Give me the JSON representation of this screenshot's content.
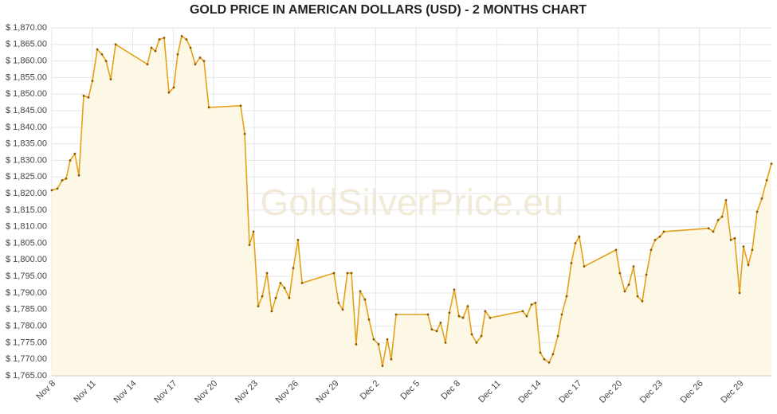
{
  "chart_data": {
    "type": "line",
    "title": "GOLD PRICE IN AMERICAN DOLLARS (USD) - 2 MONTHS CHART",
    "watermark": "GoldSilverPrice.eu",
    "color": "#e3a21a",
    "fill": "#fdf7e6",
    "grid": true,
    "xlim": [
      0,
      53.34
    ],
    "ylim": [
      1765,
      1870
    ],
    "xticks": [
      {
        "value": 0,
        "label": "Nov 8"
      },
      {
        "value": 3,
        "label": "Nov 11"
      },
      {
        "value": 6,
        "label": "Nov 14"
      },
      {
        "value": 9,
        "label": "Nov 17"
      },
      {
        "value": 12,
        "label": "Nov 20"
      },
      {
        "value": 15,
        "label": "Nov 23"
      },
      {
        "value": 18,
        "label": "Nov 26"
      },
      {
        "value": 21,
        "label": "Nov 29"
      },
      {
        "value": 24,
        "label": "Dec 2"
      },
      {
        "value": 27,
        "label": "Dec 5"
      },
      {
        "value": 30,
        "label": "Dec 8"
      },
      {
        "value": 33,
        "label": "Dec 11"
      },
      {
        "value": 36,
        "label": "Dec 14"
      },
      {
        "value": 39,
        "label": "Dec 17"
      },
      {
        "value": 42,
        "label": "Dec 20"
      },
      {
        "value": 45,
        "label": "Dec 23"
      },
      {
        "value": 48,
        "label": "Dec 26"
      },
      {
        "value": 51,
        "label": "Dec 29"
      }
    ],
    "yticks": [
      {
        "value": 1765,
        "label": "$ 1,765.00"
      },
      {
        "value": 1770,
        "label": "$ 1,770.00"
      },
      {
        "value": 1775,
        "label": "$ 1,775.00"
      },
      {
        "value": 1780,
        "label": "$ 1,780.00"
      },
      {
        "value": 1785,
        "label": "$ 1,785.00"
      },
      {
        "value": 1790,
        "label": "$ 1,790.00"
      },
      {
        "value": 1795,
        "label": "$ 1,795.00"
      },
      {
        "value": 1800,
        "label": "$ 1,800.00"
      },
      {
        "value": 1805,
        "label": "$ 1,805.00"
      },
      {
        "value": 1810,
        "label": "$ 1,810.00"
      },
      {
        "value": 1815,
        "label": "$ 1,815.00"
      },
      {
        "value": 1820,
        "label": "$ 1,820.00"
      },
      {
        "value": 1825,
        "label": "$ 1,825.00"
      },
      {
        "value": 1830,
        "label": "$ 1,830.00"
      },
      {
        "value": 1835,
        "label": "$ 1,835.00"
      },
      {
        "value": 1840,
        "label": "$ 1,840.00"
      },
      {
        "value": 1845,
        "label": "$ 1,845.00"
      },
      {
        "value": 1850,
        "label": "$ 1,850.00"
      },
      {
        "value": 1855,
        "label": "$ 1,855.00"
      },
      {
        "value": 1860,
        "label": "$ 1,860.00"
      },
      {
        "value": 1865,
        "label": "$ 1,865.00"
      },
      {
        "value": 1870,
        "label": "$ 1,870.00"
      }
    ],
    "x": [
      0,
      0.41,
      0.77,
      1.06,
      1.36,
      1.71,
      2.01,
      2.36,
      2.72,
      3.01,
      3.37,
      3.72,
      4.02,
      4.37,
      4.73,
      7.09,
      7.38,
      7.68,
      7.97,
      8.33,
      8.68,
      9.04,
      9.33,
      9.63,
      9.98,
      10.28,
      10.63,
      10.99,
      11.28,
      11.64,
      14.0,
      14.3,
      14.65,
      14.95,
      15.3,
      15.6,
      15.95,
      16.3,
      16.6,
      16.95,
      17.25,
      17.6,
      17.9,
      18.25,
      18.55,
      20.91,
      21.26,
      21.56,
      21.91,
      22.21,
      22.56,
      22.86,
      23.21,
      23.51,
      23.86,
      24.22,
      24.51,
      24.87,
      25.16,
      25.52,
      27.88,
      28.17,
      28.53,
      28.82,
      29.18,
      29.47,
      29.83,
      30.18,
      30.48,
      30.83,
      31.13,
      31.48,
      31.84,
      32.13,
      32.49,
      34.91,
      35.2,
      35.56,
      35.85,
      36.21,
      36.5,
      36.86,
      37.15,
      37.51,
      37.8,
      38.16,
      38.51,
      38.81,
      39.1,
      39.46,
      41.82,
      42.11,
      42.47,
      42.77,
      43.12,
      43.42,
      43.77,
      44.07,
      44.42,
      44.72,
      45.07,
      45.37,
      48.68,
      49.03,
      49.39,
      49.68,
      49.97,
      50.33,
      50.62,
      50.98,
      51.27,
      51.63,
      51.92,
      52.28,
      52.63,
      52.99,
      53.34
    ],
    "values": [
      1821,
      1821.5,
      1824,
      1824.5,
      1830,
      1832,
      1825.5,
      1849.5,
      1849,
      1854,
      1863.5,
      1862,
      1860,
      1854.5,
      1865,
      1859,
      1864,
      1863,
      1866.5,
      1867,
      1850.5,
      1852,
      1862,
      1867.5,
      1866.5,
      1864,
      1859,
      1861,
      1860,
      1846,
      1846.5,
      1838,
      1804.5,
      1808.5,
      1786,
      1789,
      1796,
      1784.5,
      1788.5,
      1793,
      1791.5,
      1788.5,
      1797.5,
      1806,
      1793,
      1796,
      1787,
      1785,
      1796,
      1796,
      1774.5,
      1790.5,
      1788,
      1782,
      1776,
      1774.5,
      1768,
      1776,
      1770,
      1783.5,
      1783.5,
      1779,
      1778.5,
      1781,
      1775,
      1784,
      1791,
      1783,
      1782.5,
      1786,
      1777.5,
      1775,
      1777,
      1784.5,
      1782.5,
      1784.5,
      1783,
      1786.5,
      1787,
      1772,
      1770,
      1769,
      1771.5,
      1777,
      1783.5,
      1789,
      1799,
      1805,
      1807,
      1798,
      1803,
      1796,
      1790.5,
      1792.5,
      1798,
      1789,
      1787.5,
      1795.5,
      1803,
      1806,
      1807,
      1808.5,
      1809.5,
      1808.5,
      1812,
      1813,
      1818,
      1806,
      1806.5,
      1790,
      1804,
      1798.5,
      1803,
      1814.5,
      1818.5,
      1824,
      1829
    ]
  }
}
